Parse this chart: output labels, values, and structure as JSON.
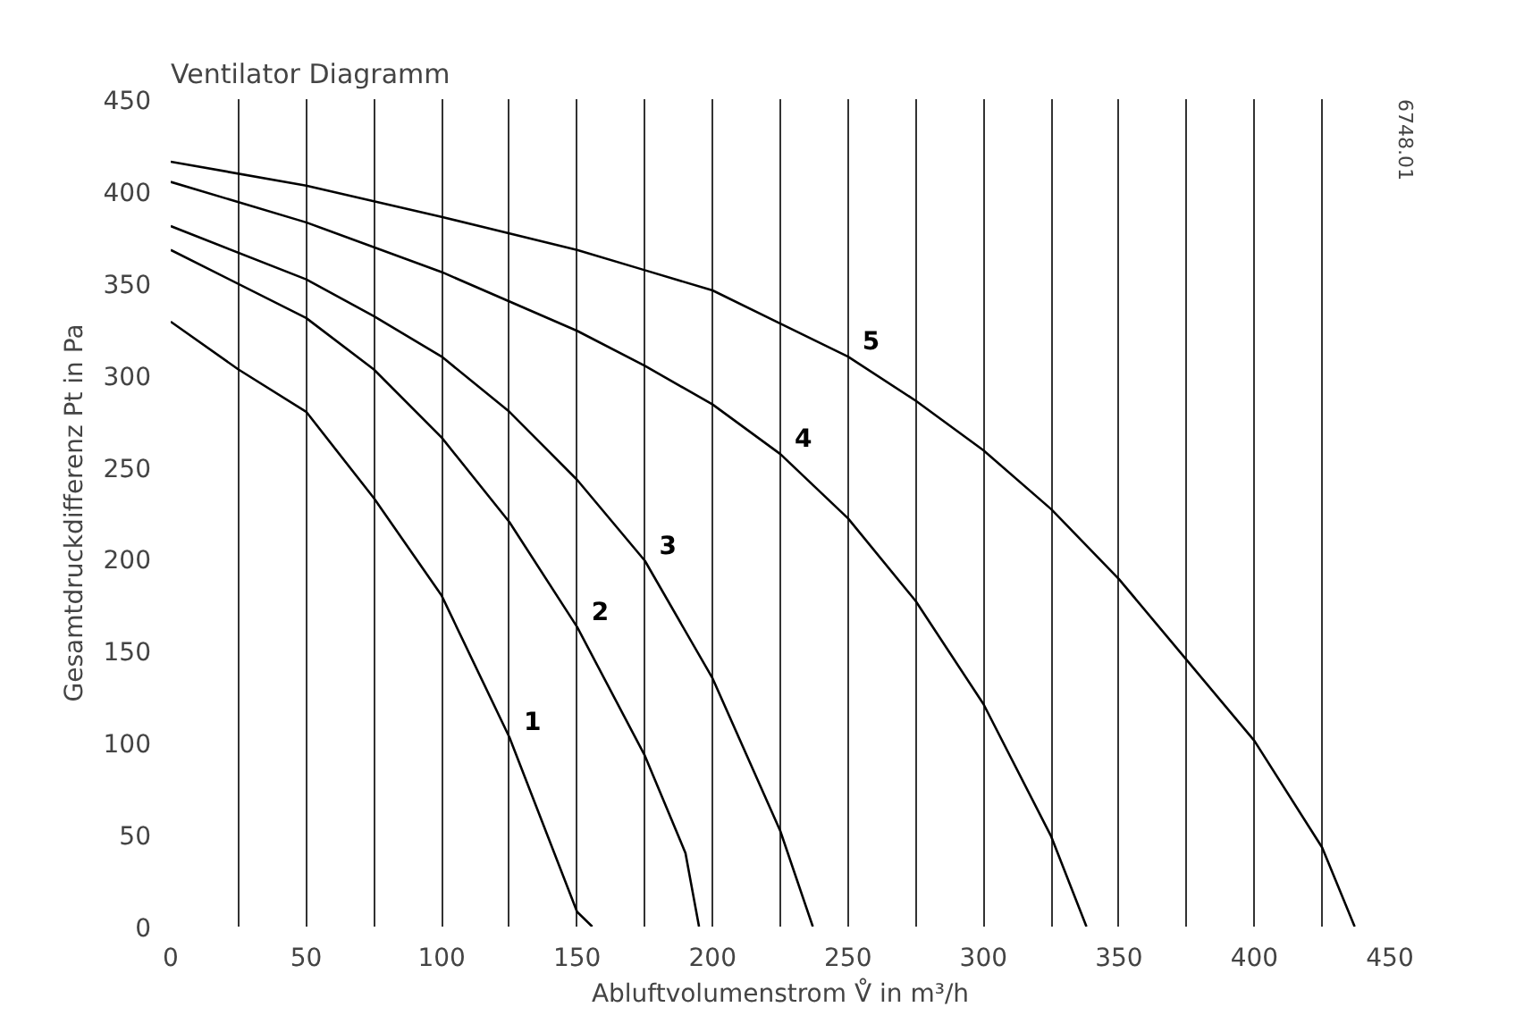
{
  "chart_data": {
    "type": "line",
    "title": "Ventilator Diagramm",
    "xlabel": "Abluftvolumenstrom V̊ in m³/h",
    "ylabel": "Gesamtdruckdifferenz Pt in Pa",
    "annotations": [
      "6748.01"
    ],
    "xlim": [
      0,
      450
    ],
    "ylim": [
      0,
      450
    ],
    "xticks": [
      0,
      {
        "value": 25,
        "label": null
      },
      50,
      {
        "value": 75,
        "label": null
      },
      100,
      {
        "value": 125,
        "label": null
      },
      150,
      {
        "value": 175,
        "label": null
      },
      200,
      {
        "value": 225,
        "label": null
      },
      250,
      {
        "value": 275,
        "label": null
      },
      300,
      {
        "value": 325,
        "label": null
      },
      350,
      {
        "value": 375,
        "label": null
      },
      400,
      {
        "value": 425,
        "label": null
      },
      450
    ],
    "yticks": [
      0,
      50,
      100,
      150,
      200,
      250,
      300,
      350,
      400,
      450
    ],
    "grid": "x",
    "marker": "none",
    "line_style": "solid",
    "series": [
      {
        "name": "1",
        "color": "#000000",
        "x": [
          0,
          25,
          50,
          75,
          100,
          125,
          150,
          155.6
        ],
        "values": [
          329,
          303,
          280,
          233,
          180,
          103,
          8,
          0
        ]
      },
      {
        "name": "2",
        "color": "#000000",
        "x": [
          0,
          50,
          75,
          100,
          125,
          150,
          175,
          190,
          195
        ],
        "values": [
          368,
          331,
          303,
          266,
          220,
          163,
          93,
          40,
          0
        ]
      },
      {
        "name": "3",
        "color": "#000000",
        "x": [
          0,
          50,
          75,
          100,
          125,
          150,
          175,
          200,
          225,
          237
        ],
        "values": [
          381,
          352,
          332,
          310,
          280,
          243,
          199,
          135,
          52,
          0
        ]
      },
      {
        "name": "4",
        "color": "#000000",
        "x": [
          0,
          50,
          100,
          150,
          175,
          200,
          225,
          250,
          275,
          300,
          325,
          338
        ],
        "values": [
          405,
          383,
          356,
          324,
          305,
          284,
          257,
          222,
          177,
          121,
          49,
          0
        ]
      },
      {
        "name": "5",
        "color": "#000000",
        "x": [
          0,
          50,
          100,
          150,
          175,
          200,
          225,
          250,
          275,
          300,
          325,
          350,
          375,
          400,
          425,
          437
        ],
        "values": [
          416,
          403,
          386,
          368,
          357,
          346,
          328,
          310,
          286,
          259,
          227,
          189,
          145,
          101,
          43,
          0
        ]
      }
    ]
  }
}
